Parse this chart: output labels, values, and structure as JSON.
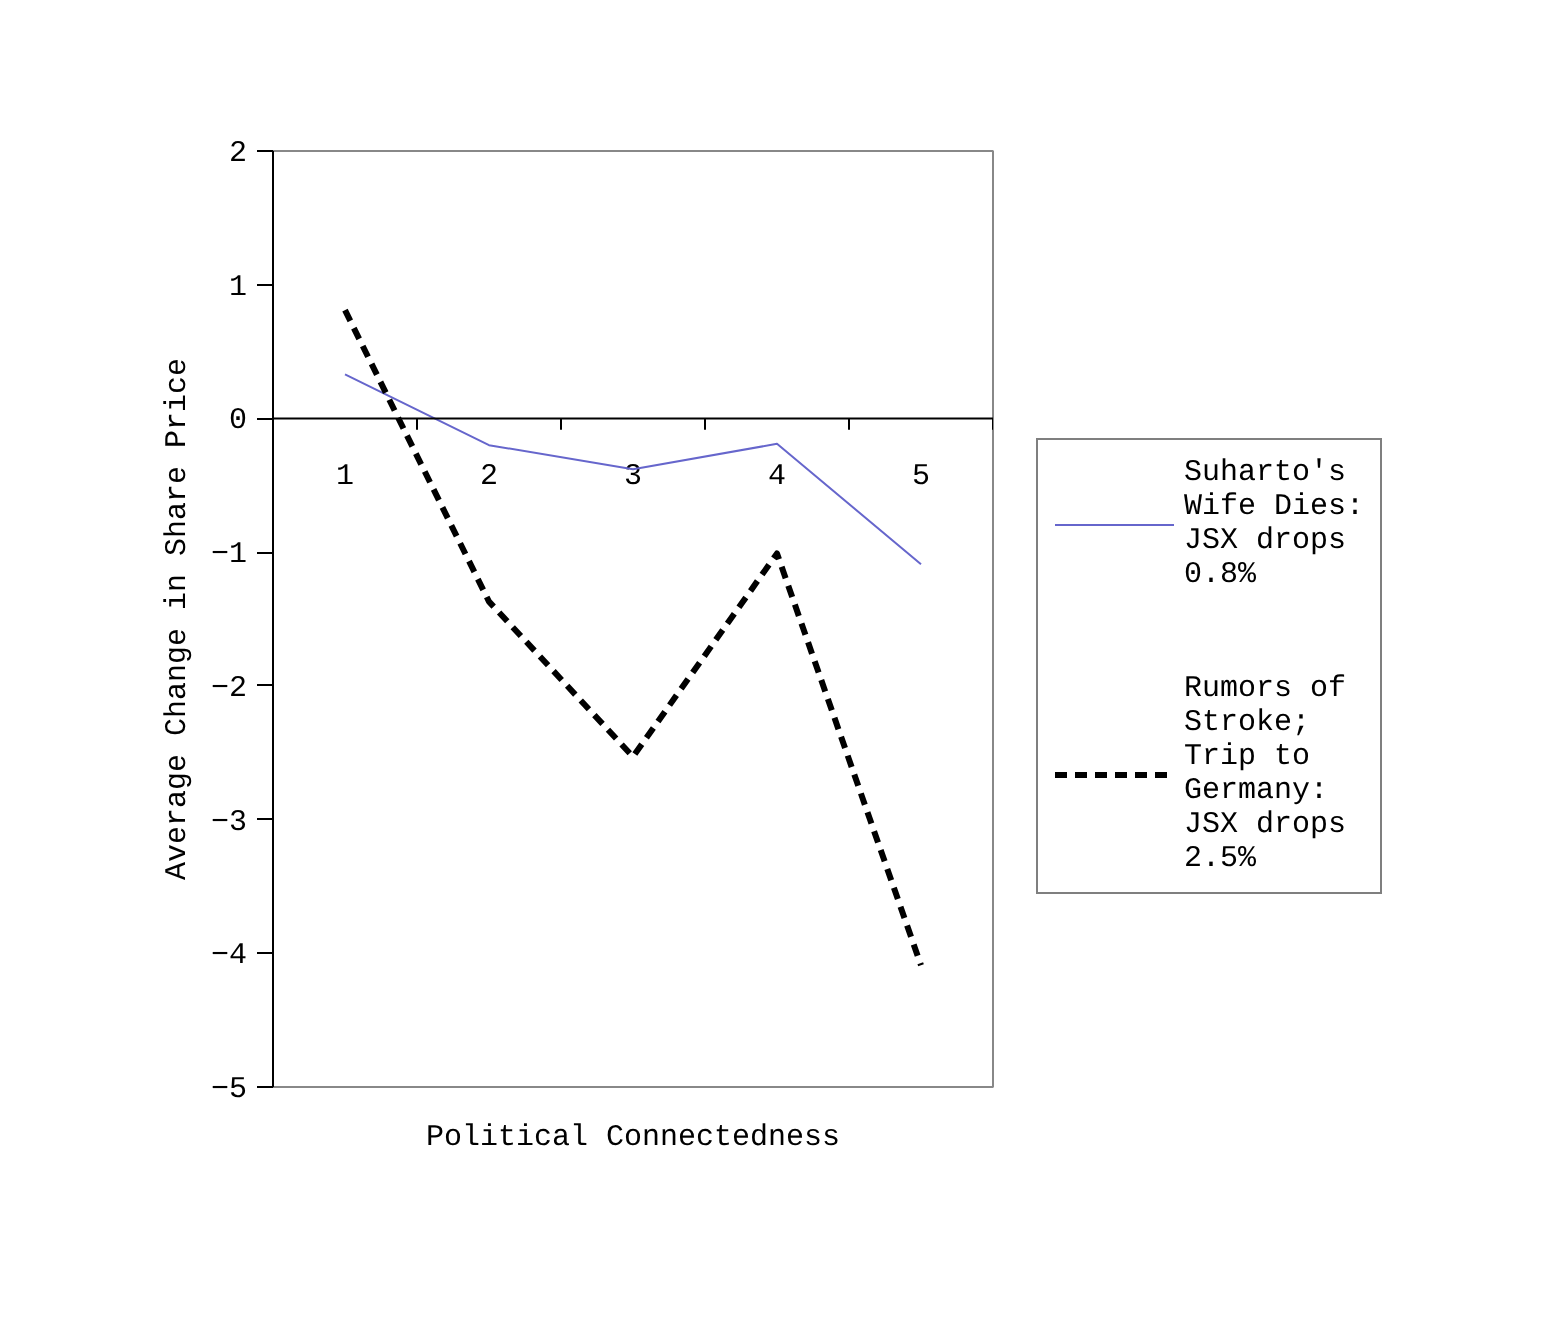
{
  "chart_data": {
    "type": "line",
    "xlabel": "Political Connectedness",
    "ylabel": "Average Change in Share Price",
    "categories": [
      "1",
      "2",
      "3",
      "4",
      "5"
    ],
    "series": [
      {
        "name": "Suharto's Wife Dies: JSX drops 0.8%",
        "color": "#6666cc",
        "line_style": "solid",
        "values": [
          0.33,
          -0.2,
          -0.38,
          -0.19,
          -1.09
        ]
      },
      {
        "name": "Rumors of Stroke; Trip to Germany: JSX drops 2.5%",
        "color": "#000000",
        "line_style": "dashed",
        "values": [
          0.81,
          -1.37,
          -2.53,
          -1.01,
          -4.09
        ]
      }
    ],
    "ylim": [
      -5,
      2
    ],
    "yticks": [
      -5,
      -4,
      -3,
      -2,
      -1,
      0,
      1,
      2
    ],
    "grid": false,
    "legend": "right",
    "marker": "none"
  }
}
